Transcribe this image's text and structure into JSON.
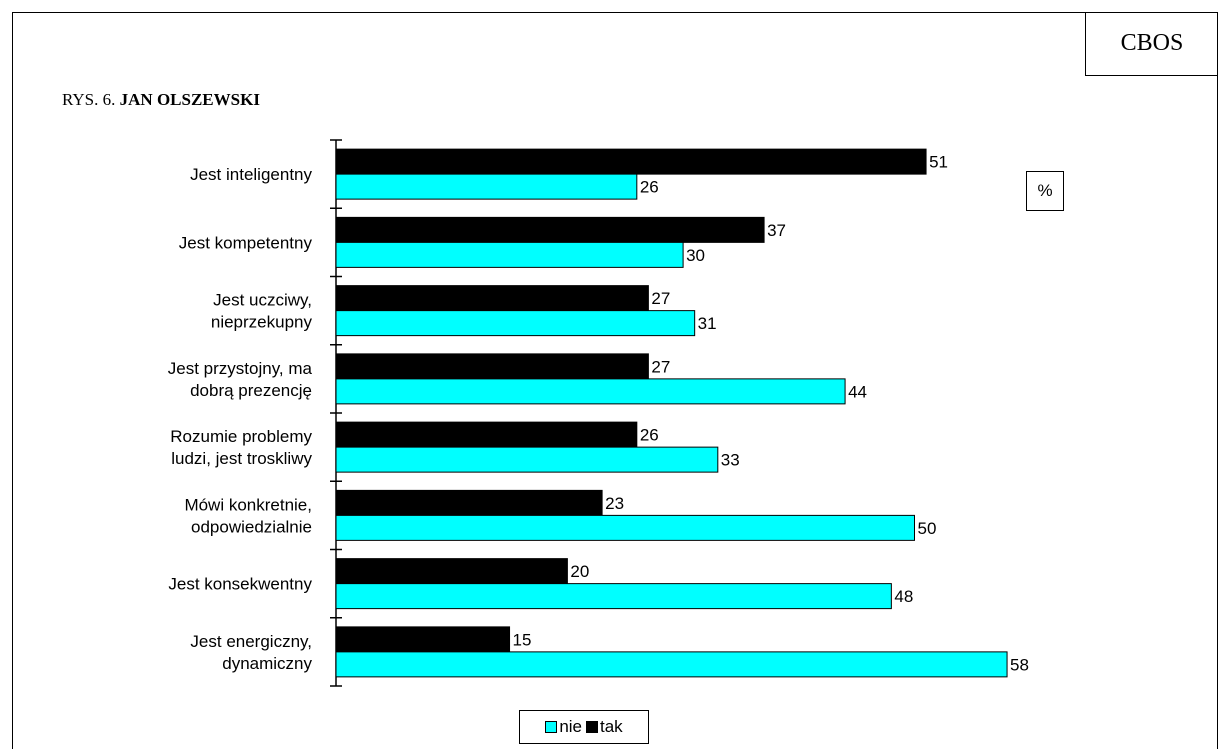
{
  "header": {
    "org": "CBOS",
    "title_prefix": "RYS. 6.",
    "title_name": "JAN OLSZEWSKI",
    "unit": "%"
  },
  "colors": {
    "nie": "#00ffff",
    "tak": "#000000"
  },
  "chart_data": {
    "type": "bar",
    "orientation": "horizontal",
    "categories": [
      [
        "Jest inteligentny"
      ],
      [
        "Jest kompetentny"
      ],
      [
        "Jest uczciwy,",
        "nieprzekupny"
      ],
      [
        "Jest przystojny, ma",
        "dobrą prezencję"
      ],
      [
        "Rozumie problemy",
        "ludzi, jest troskliwy"
      ],
      [
        "Mówi konkretnie,",
        "odpowiedzialnie"
      ],
      [
        "Jest konsekwentny"
      ],
      [
        "Jest energiczny,",
        "dynamiczny"
      ]
    ],
    "series": [
      {
        "name": "tak",
        "values": [
          51,
          37,
          27,
          27,
          26,
          23,
          20,
          15
        ]
      },
      {
        "name": "nie",
        "values": [
          26,
          30,
          31,
          44,
          33,
          50,
          48,
          58
        ]
      }
    ],
    "xlim": [
      0,
      60
    ],
    "grid": false,
    "legend_position": "bottom"
  },
  "legend": {
    "nie": "nie",
    "tak": "tak"
  }
}
